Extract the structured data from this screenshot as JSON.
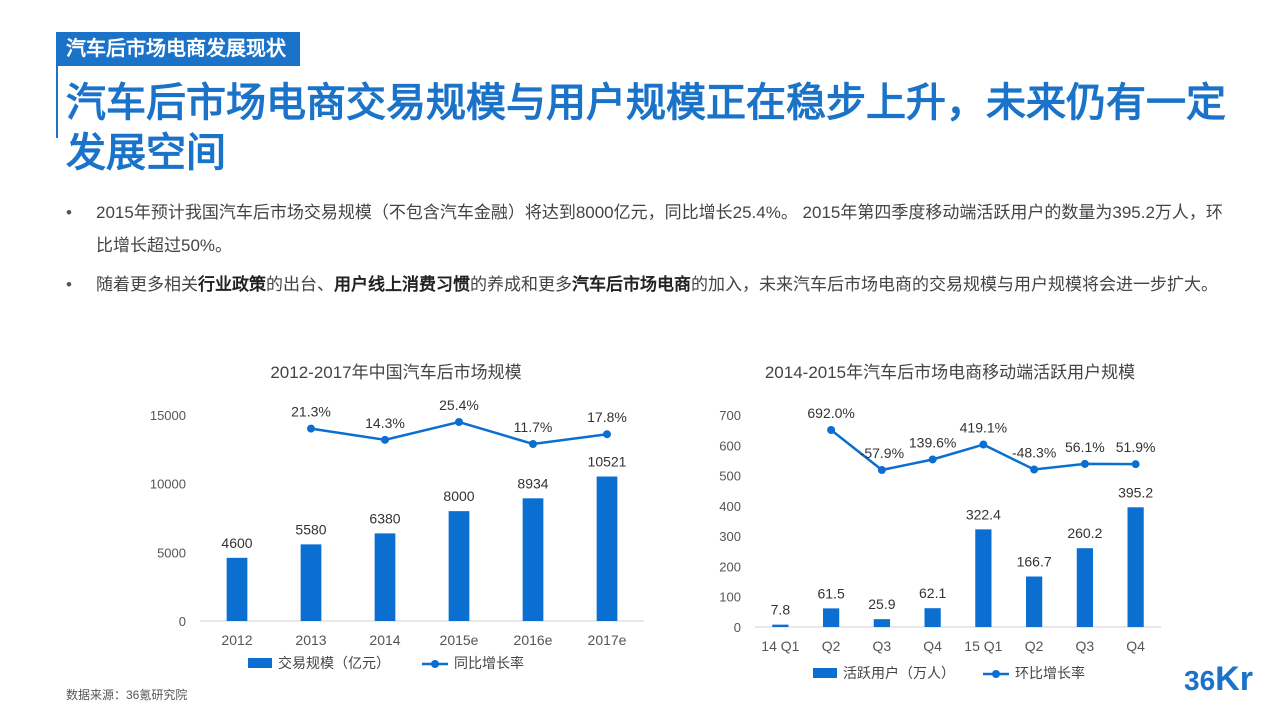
{
  "header": {
    "tag": "汽车后市场电商发展现状",
    "title": "汽车后市场电商交易规模与用户规模正在稳步上升，未来仍有一定发展空间"
  },
  "bullets": [
    {
      "parts": [
        {
          "text": "2015年预计我国汽车后市场交易规模（不包含汽车金融）将达到8000亿元，同比增长25.4%。 2015年第四季度移动端活跃用户的数量为395.2万人，环比增长超过50%。",
          "bold": false
        }
      ]
    },
    {
      "parts": [
        {
          "text": "随着更多相关",
          "bold": false
        },
        {
          "text": "行业政策",
          "bold": true
        },
        {
          "text": "的出台、",
          "bold": false
        },
        {
          "text": "用户线上消费习惯",
          "bold": true
        },
        {
          "text": "的养成和更多",
          "bold": false
        },
        {
          "text": "汽车后市场电商",
          "bold": true
        },
        {
          "text": "的加入，未来汽车后市场电商的交易规模与用户规模将会进一步扩大。",
          "bold": false
        }
      ]
    }
  ],
  "footer": {
    "source": "数据来源：36氪研究院",
    "logo_num": "36",
    "logo_k": "Kr"
  },
  "colors": {
    "accent": "#1a73c8",
    "bar": "#0b6fd1",
    "axis": "#d0d0d0",
    "text": "#555555"
  },
  "chart_data": [
    {
      "type": "bar+line",
      "title": "2012-2017年中国汽车后市场规模",
      "categories": [
        "2012",
        "2013",
        "2014",
        "2015e",
        "2016e",
        "2017e"
      ],
      "yticks": [
        0,
        5000,
        10000,
        15000
      ],
      "ylim": [
        0,
        15000
      ],
      "series": [
        {
          "name": "交易规模（亿元）",
          "type": "bar",
          "values": [
            4600,
            5580,
            6380,
            8000,
            8934,
            10521
          ],
          "labels": [
            "4600",
            "5580",
            "6380",
            "8000",
            "8934",
            "10521"
          ]
        },
        {
          "name": "同比增长率",
          "type": "line",
          "values": [
            null,
            21.3,
            14.3,
            25.4,
            11.7,
            17.8
          ],
          "labels": [
            null,
            "21.3%",
            "14.3%",
            "25.4%",
            "11.7%",
            "17.8%"
          ]
        }
      ],
      "legend": "bottom"
    },
    {
      "type": "bar+line",
      "title": "2014-2015年汽车后市场电商移动端活跃用户规模",
      "categories": [
        "14 Q1",
        "Q2",
        "Q3",
        "Q4",
        "15 Q1",
        "Q2",
        "Q3",
        "Q4"
      ],
      "yticks": [
        0,
        100,
        200,
        300,
        400,
        500,
        600,
        700
      ],
      "ylim": [
        0,
        700
      ],
      "series": [
        {
          "name": "活跃用户（万人）",
          "type": "bar",
          "values": [
            7.8,
            61.5,
            25.9,
            62.1,
            322.4,
            166.7,
            260.2,
            395.2
          ],
          "labels": [
            "7.8",
            "61.5",
            "25.9",
            "62.1",
            "322.4",
            "166.7",
            "260.2",
            "395.2"
          ]
        },
        {
          "name": "环比增长率",
          "type": "line",
          "values": [
            null,
            692.0,
            -57.9,
            139.6,
            419.1,
            -48.3,
            56.1,
            51.9
          ],
          "labels": [
            null,
            "692.0%",
            "-57.9%",
            "139.6%",
            "419.1%",
            "-48.3%",
            "56.1%",
            "51.9%"
          ]
        }
      ],
      "legend": "bottom"
    }
  ]
}
